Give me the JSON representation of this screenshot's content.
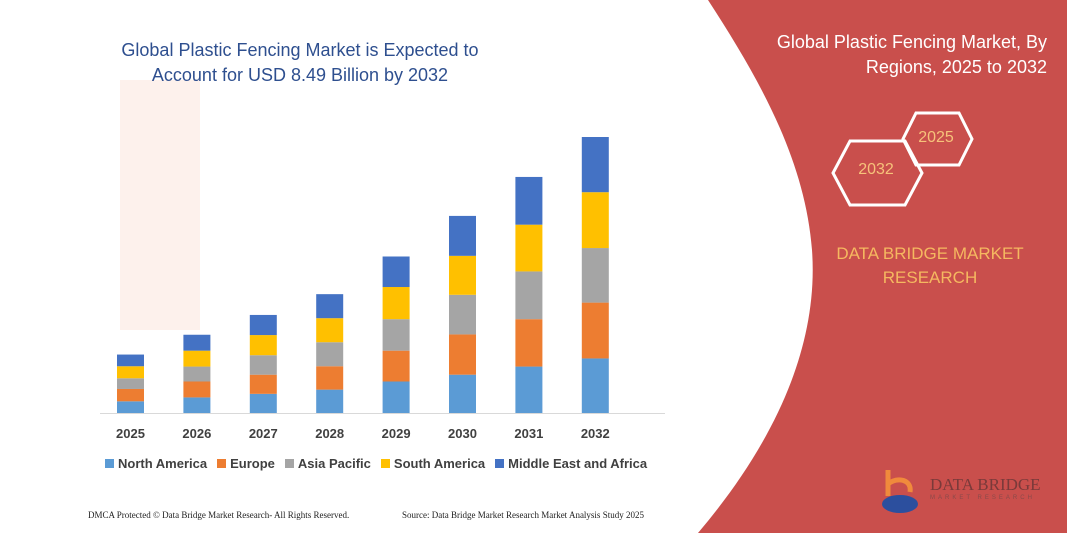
{
  "header": {
    "title": "Global Plastic Fencing Market is Expected to Account for USD 8.49 Billion by 2032",
    "right_title": "Global Plastic Fencing Market, By Regions, 2025 to 2032"
  },
  "badges": {
    "start_year": "2025",
    "end_year": "2032"
  },
  "brand": {
    "name": "DATA BRIDGE MARKET RESEARCH",
    "logo_text": "DATA BRIDGE",
    "logo_sub": "MARKET RESEARCH"
  },
  "footer": {
    "left": "DMCA Protected © Data Bridge Market Research- All Rights Reserved.",
    "right": "Source: Data Bridge Market Research Market Analysis Study 2025"
  },
  "colors": {
    "panel": "#c94f4c",
    "title": "#2e4f8f",
    "accent": "#f5b860"
  },
  "chart_data": {
    "type": "bar",
    "stacked": true,
    "title": "Global Plastic Fencing Market is Expected to Account for USD 8.49 Billion by 2032",
    "categories": [
      "2025",
      "2026",
      "2027",
      "2028",
      "2029",
      "2030",
      "2031",
      "2032"
    ],
    "legend_position": "bottom",
    "grid": false,
    "series": [
      {
        "name": "North America",
        "color": "#5b9bd5",
        "values": [
          0.36,
          0.48,
          0.59,
          0.72,
          0.97,
          1.18,
          1.43,
          1.68
        ]
      },
      {
        "name": "Europe",
        "color": "#ed7d31",
        "values": [
          0.38,
          0.49,
          0.59,
          0.72,
          0.95,
          1.24,
          1.46,
          1.72
        ]
      },
      {
        "name": "Asia Pacific",
        "color": "#a5a5a5",
        "values": [
          0.33,
          0.46,
          0.6,
          0.74,
          0.97,
          1.22,
          1.47,
          1.68
        ]
      },
      {
        "name": "South America",
        "color": "#ffc000",
        "values": [
          0.37,
          0.49,
          0.62,
          0.74,
          0.99,
          1.2,
          1.44,
          1.72
        ]
      },
      {
        "name": "Middle East and Africa",
        "color": "#4472c4",
        "values": [
          0.36,
          0.49,
          0.62,
          0.74,
          0.94,
          1.23,
          1.47,
          1.7
        ]
      }
    ]
  }
}
